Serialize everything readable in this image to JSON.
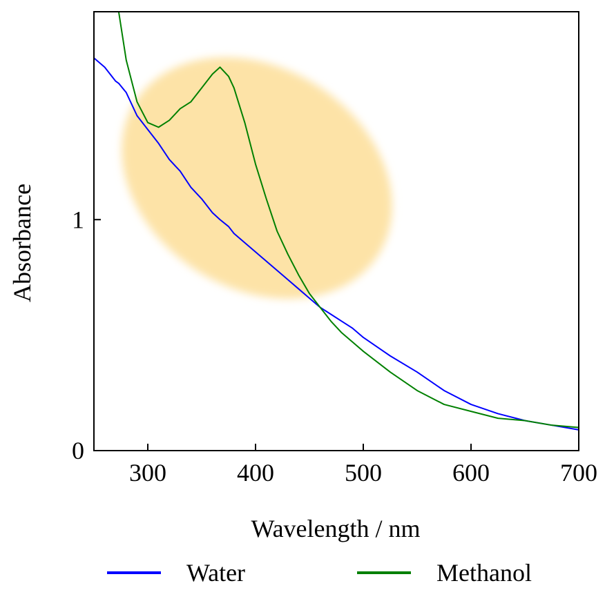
{
  "chart_data": {
    "type": "line",
    "x_label": "Wavelength / nm",
    "y_label": "Absorbance",
    "x": [
      250,
      260,
      270,
      273,
      280,
      290,
      300,
      310,
      320,
      330,
      340,
      350,
      360,
      367,
      375,
      380,
      390,
      400,
      410,
      420,
      430,
      440,
      450,
      460,
      470,
      480,
      490,
      500,
      525,
      550,
      575,
      600,
      625,
      650,
      675,
      700
    ],
    "series": [
      {
        "name": "Water",
        "color": "#0000ff",
        "values": [
          1.7,
          1.66,
          1.6,
          1.59,
          1.55,
          1.45,
          1.39,
          1.33,
          1.26,
          1.21,
          1.14,
          1.09,
          1.03,
          1.0,
          0.97,
          0.94,
          0.9,
          0.86,
          0.82,
          0.78,
          0.74,
          0.7,
          0.66,
          0.62,
          0.59,
          0.56,
          0.53,
          0.49,
          0.41,
          0.34,
          0.26,
          0.2,
          0.16,
          0.13,
          0.11,
          0.09
        ]
      },
      {
        "name": "Methanol",
        "color": "#008000",
        "values": [
          null,
          null,
          null,
          1.9,
          1.69,
          1.51,
          1.42,
          1.4,
          1.43,
          1.48,
          1.51,
          1.57,
          1.63,
          1.66,
          1.62,
          1.57,
          1.42,
          1.24,
          1.09,
          0.95,
          0.85,
          0.76,
          0.68,
          0.62,
          0.56,
          0.51,
          0.47,
          0.43,
          0.34,
          0.26,
          0.2,
          0.17,
          0.14,
          0.13,
          0.11,
          0.1
        ]
      }
    ],
    "xlim": [
      250,
      700
    ],
    "xticks": [
      300,
      400,
      500,
      600,
      700
    ],
    "ylim": [
      0,
      1.9
    ],
    "yticks": [
      0,
      1
    ]
  }
}
